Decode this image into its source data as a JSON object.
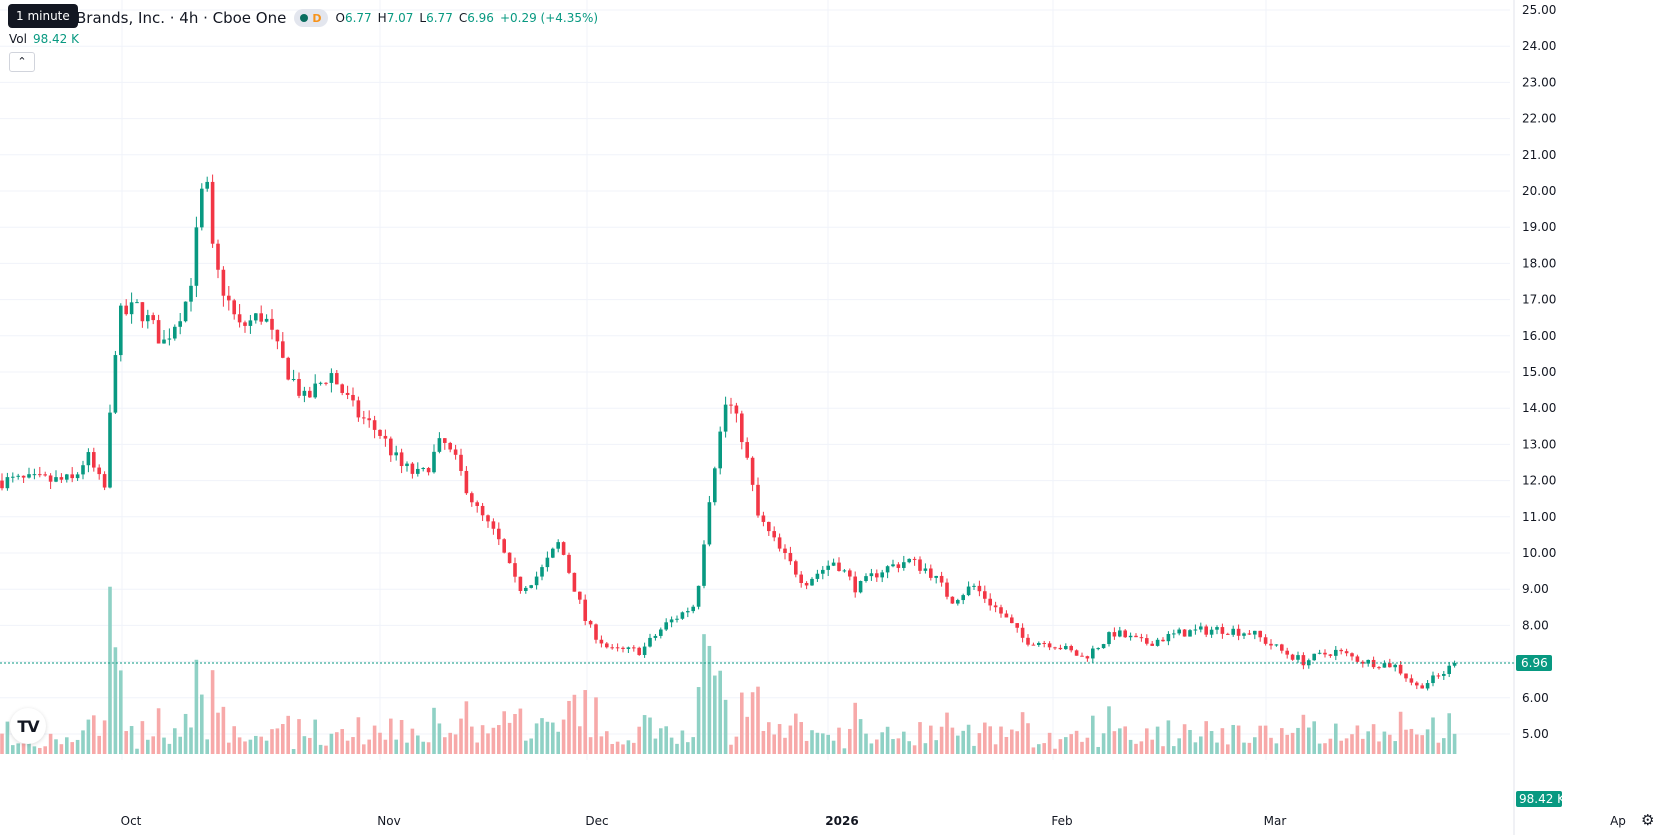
{
  "tooltip": "1 minute",
  "legend": {
    "title": "Brands, Inc. · 4h · Cboe One",
    "interval_badge": "D",
    "open_label": "O",
    "open": "6.77",
    "high_label": "H",
    "high": "7.07",
    "low_label": "L",
    "low": "6.77",
    "close_label": "C",
    "close": "6.96",
    "change": "+0.29 (+4.35%)"
  },
  "volume_legend": {
    "label": "Vol",
    "value": "98.42 K"
  },
  "collapse_icon": "chevron-up-icon",
  "logo_icon": "tradingview-logo-icon",
  "settings_icon": "gear-icon",
  "colors": {
    "up": "#089981",
    "down": "#f23645",
    "up_vol": "#8fd1c5",
    "down_vol": "#f7a9a9",
    "grid": "#f0f3fa"
  },
  "chart_data": {
    "type": "candlestick",
    "y_ticks": [
      "25.00",
      "24.00",
      "23.00",
      "22.00",
      "21.00",
      "20.00",
      "19.00",
      "18.00",
      "17.00",
      "16.00",
      "15.00",
      "14.00",
      "13.00",
      "12.00",
      "11.00",
      "10.00",
      "9.00",
      "8.00",
      "7.00",
      "6.00",
      "5.00"
    ],
    "ylim": [
      4.5,
      25.3
    ],
    "x_labels": [
      "Oct",
      "Nov",
      "Dec",
      "2026",
      "Feb",
      "Mar",
      "Ap"
    ],
    "last_price": "6.96",
    "last_volume": "98.42 K",
    "price_path": [
      [
        "Sep 20",
        12.0
      ],
      [
        "Sep 23",
        12.7
      ],
      [
        "Sep 25",
        12.2
      ],
      [
        "Sep 27",
        11.7
      ],
      [
        "Sep 30",
        16.5
      ],
      [
        "Oct 3",
        16.8
      ],
      [
        "Oct 6",
        15.8
      ],
      [
        "Oct 9",
        17.1
      ],
      [
        "Oct 11",
        20.6
      ],
      [
        "Oct 12",
        18.0
      ],
      [
        "Oct 15",
        16.2
      ],
      [
        "Oct 18",
        16.6
      ],
      [
        "Oct 20",
        15.4
      ],
      [
        "Oct 23",
        14.2
      ],
      [
        "Oct 26",
        15.0
      ],
      [
        "Oct 29",
        13.9
      ],
      [
        "Nov 1",
        13.3
      ],
      [
        "Nov 4",
        12.4
      ],
      [
        "Nov 7",
        12.1
      ],
      [
        "Nov 10",
        13.1
      ],
      [
        "Nov 12",
        12.5
      ],
      [
        "Nov 15",
        11.2
      ],
      [
        "Nov 18",
        10.4
      ],
      [
        "Nov 21",
        9.0
      ],
      [
        "Nov 24",
        9.4
      ],
      [
        "Nov 27",
        10.3
      ],
      [
        "Dec 1",
        8.0
      ],
      [
        "Dec 4",
        7.3
      ],
      [
        "Dec 8",
        7.3
      ],
      [
        "Dec 11",
        8.0
      ],
      [
        "Dec 15",
        8.6
      ],
      [
        "Dec 17",
        12.0
      ],
      [
        "Dec 19",
        14.3
      ],
      [
        "Dec 21",
        13.2
      ],
      [
        "Dec 23",
        11.0
      ],
      [
        "Dec 26",
        10.0
      ],
      [
        "Dec 29",
        9.2
      ],
      [
        "Jan 2",
        9.8
      ],
      [
        "Jan 5",
        9.0
      ],
      [
        "Jan 8",
        9.5
      ],
      [
        "Jan 12",
        9.8
      ],
      [
        "Jan 15",
        9.5
      ],
      [
        "Jan 18",
        8.7
      ],
      [
        "Jan 21",
        9.1
      ],
      [
        "Jan 25",
        8.3
      ],
      [
        "Jan 28",
        7.6
      ],
      [
        "Feb 1",
        7.5
      ],
      [
        "Feb 5",
        7.1
      ],
      [
        "Feb 9",
        7.8
      ],
      [
        "Feb 13",
        7.5
      ],
      [
        "Feb 18",
        7.8
      ],
      [
        "Feb 23",
        7.9
      ],
      [
        "Feb 27",
        7.8
      ],
      [
        "Mar 3",
        7.3
      ],
      [
        "Mar 6",
        7.0
      ],
      [
        "Mar 10",
        7.3
      ],
      [
        "Mar 14",
        7.0
      ],
      [
        "Mar 18",
        6.9
      ],
      [
        "Mar 21",
        6.3
      ],
      [
        "Mar 24",
        6.6
      ],
      [
        "Mar 26",
        6.96
      ]
    ]
  }
}
